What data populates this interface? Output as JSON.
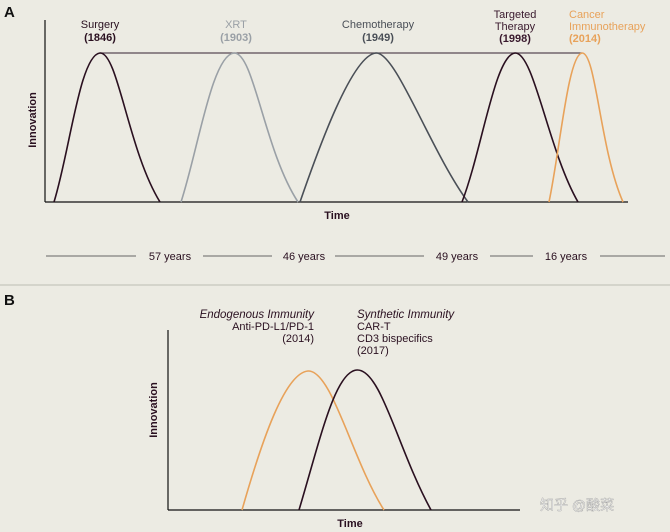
{
  "panel_a": {
    "label": "A",
    "y_axis_label": "Innovation",
    "x_axis_label": "Time",
    "eras": [
      {
        "name": "Surgery",
        "year": "(1846)",
        "color": "#3a1a2e"
      },
      {
        "name": "XRT",
        "year": "(1903)",
        "color": "#9aa0a6"
      },
      {
        "name": "Chemotherapy",
        "year": "(1949)",
        "color": "#4a4f57"
      },
      {
        "name_line1": "Targeted",
        "name_line2": "Therapy",
        "year": "(1998)",
        "color": "#3a1a2e"
      },
      {
        "name_line1": "Cancer",
        "name_line2": "Immunotherapy",
        "year": "(2014)",
        "color": "#e8a25a"
      }
    ],
    "intervals": [
      "57 years",
      "46 years",
      "49 years",
      "16 years"
    ]
  },
  "panel_b": {
    "label": "B",
    "y_axis_label": "Innovation",
    "x_axis_label": "Time",
    "endogenous": {
      "title": "Endogenous Immunity",
      "line1": "Anti-PD-L1/PD-1",
      "line2": "(2014)",
      "color": "#e8a25a"
    },
    "synthetic": {
      "title": "Synthetic Immunity",
      "line1": "CAR-T",
      "line2": "CD3 bispecifics",
      "line3": "(2017)",
      "color": "#2a1020"
    }
  },
  "watermark": "知乎 @酸菜"
}
